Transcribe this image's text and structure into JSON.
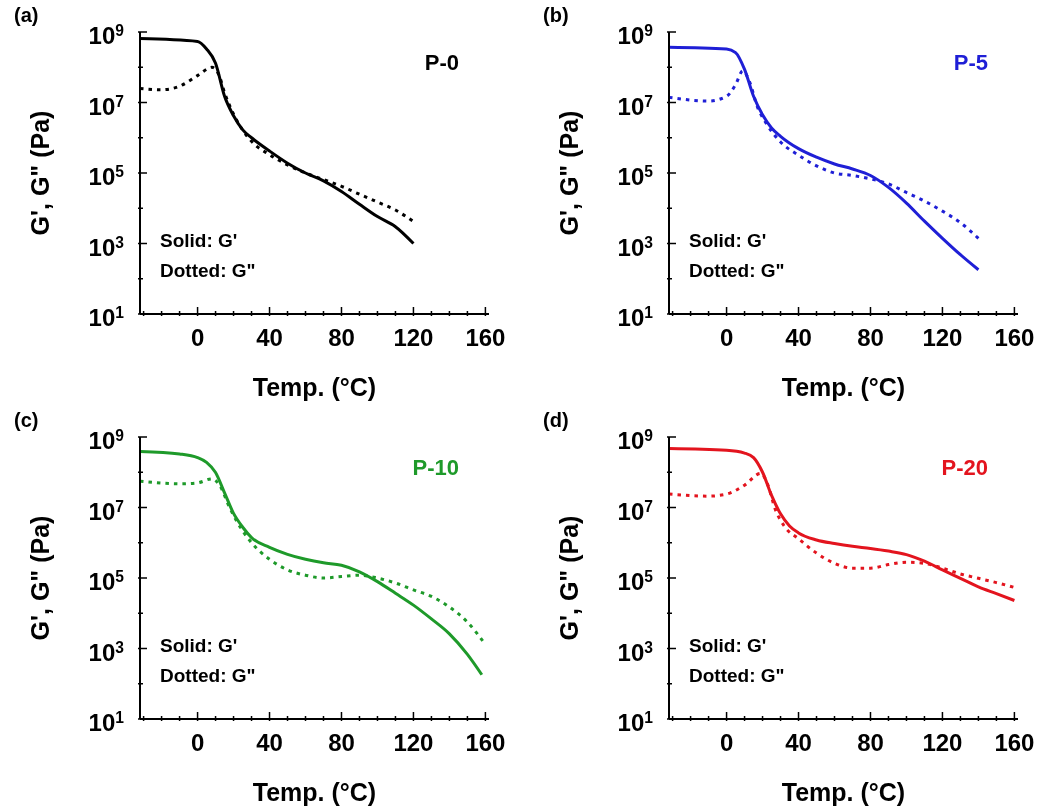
{
  "chart_data": [
    {
      "type": "line",
      "title": "(a)",
      "xlabel": "Temp. (°C)",
      "ylabel": "G', G\" (Pa)",
      "annotations": [
        "P-0",
        "Solid: G'",
        "Dotted: G\""
      ],
      "log": true,
      "xlim": [
        -32,
        162
      ],
      "ylim": [
        10,
        1000000000
      ],
      "xticks": [
        {
          "value": -30,
          "label": null
        },
        {
          "value": -20,
          "label": null
        },
        {
          "value": -10,
          "label": null
        },
        0,
        {
          "value": 10,
          "label": null
        },
        {
          "value": 20,
          "label": null
        },
        {
          "value": 30,
          "label": null
        },
        40,
        {
          "value": 50,
          "label": null
        },
        {
          "value": 60,
          "label": null
        },
        {
          "value": 70,
          "label": null
        },
        80,
        {
          "value": 90,
          "label": null
        },
        {
          "value": 100,
          "label": null
        },
        {
          "value": 110,
          "label": null
        },
        120,
        {
          "value": 130,
          "label": null
        },
        {
          "value": 140,
          "label": null
        },
        {
          "value": 150,
          "label": null
        },
        160
      ],
      "yticks": [
        {
          "value": 10,
          "label": "10$^{1}$"
        },
        {
          "value": 100,
          "label": null
        },
        {
          "value": 1000,
          "label": "10$^{3}$"
        },
        {
          "value": 10000,
          "label": null
        },
        {
          "value": 100000,
          "label": "10$^{5}$"
        },
        {
          "value": 1000000,
          "label": null
        },
        {
          "value": 10000000,
          "label": "10$^{7}$"
        },
        {
          "value": 100000000,
          "label": null
        },
        {
          "value": 1000000000,
          "label": "10$^{9}$"
        }
      ],
      "series": [
        {
          "color": "#000000",
          "line_style": "solid",
          "x": [
            -32,
            0,
            5,
            10,
            15,
            20,
            25,
            30,
            40,
            50,
            60,
            70,
            80,
            90,
            100,
            110,
            120
          ],
          "values": [
            650000000.0,
            540000000.0,
            330000000.0,
            130000000.0,
            15000000.0,
            4200000.0,
            1700000.0,
            1000000.0,
            420000.0,
            190000.0,
            100000.0,
            60000.0,
            30000.0,
            13000.0,
            5800.0,
            3000.0,
            1000.0
          ]
        },
        {
          "color": "#000000",
          "line_style": "dotted",
          "x": [
            -32,
            -20,
            -10,
            0,
            8,
            12,
            15,
            20,
            30,
            40,
            50,
            60,
            70,
            80,
            90,
            100,
            110,
            120
          ],
          "values": [
            25000000.0,
            23000000.0,
            29000000.0,
            58000000.0,
            100000000.0,
            58000000.0,
            19000000.0,
            4700000.0,
            790000.0,
            330000.0,
            170000.0,
            100000.0,
            65000.0,
            42000.0,
            25000.0,
            15000.0,
            8900.0,
            4200.0
          ]
        }
      ]
    },
    {
      "type": "line",
      "title": "(b)",
      "xlabel": "Temp. (°C)",
      "ylabel": "G', G\" (Pa)",
      "annotations": [
        "P-5",
        "Solid: G'",
        "Dotted: G\""
      ],
      "log": true,
      "xlim": [
        -32,
        162
      ],
      "ylim": [
        10,
        1000000000
      ],
      "xticks": [
        {
          "value": -30,
          "label": null
        },
        {
          "value": -20,
          "label": null
        },
        {
          "value": -10,
          "label": null
        },
        0,
        {
          "value": 10,
          "label": null
        },
        {
          "value": 20,
          "label": null
        },
        {
          "value": 30,
          "label": null
        },
        40,
        {
          "value": 50,
          "label": null
        },
        {
          "value": 60,
          "label": null
        },
        {
          "value": 70,
          "label": null
        },
        80,
        {
          "value": 90,
          "label": null
        },
        {
          "value": 100,
          "label": null
        },
        {
          "value": 110,
          "label": null
        },
        120,
        {
          "value": 130,
          "label": null
        },
        {
          "value": 140,
          "label": null
        },
        {
          "value": 150,
          "label": null
        },
        160
      ],
      "yticks": [
        {
          "value": 10,
          "label": "10$^{1}$"
        },
        {
          "value": 100,
          "label": null
        },
        {
          "value": 1000,
          "label": "10$^{3}$"
        },
        {
          "value": 10000,
          "label": null
        },
        {
          "value": 100000,
          "label": "10$^{5}$"
        },
        {
          "value": 1000000,
          "label": null
        },
        {
          "value": 10000000,
          "label": "10$^{7}$"
        },
        {
          "value": 100000000,
          "label": null
        },
        {
          "value": 1000000000,
          "label": "10$^{9}$"
        }
      ],
      "series": [
        {
          "color": "#1f1fd6",
          "line_style": "solid",
          "x": [
            -32,
            0,
            5,
            10,
            15,
            20,
            25,
            30,
            40,
            50,
            60,
            70,
            80,
            90,
            100,
            110,
            120,
            130,
            140
          ],
          "values": [
            370000000.0,
            330000000.0,
            260000000.0,
            87000000.0,
            15000000.0,
            4500000.0,
            1900000.0,
            1100000.0,
            490000.0,
            280000.0,
            180000.0,
            130000.0,
            85000.0,
            39000.0,
            14000.0,
            4300.0,
            1400.0,
            480,
            180
          ]
        },
        {
          "color": "#1f1fd6",
          "line_style": "dotted",
          "x": [
            -32,
            -10,
            0,
            5,
            9,
            13,
            17,
            22,
            30,
            40,
            50,
            60,
            70,
            80,
            90,
            100,
            110,
            120,
            130,
            140
          ],
          "values": [
            14000000.0,
            11000000.0,
            15000000.0,
            32000000.0,
            79000000.0,
            36000000.0,
            7800000.0,
            2600000.0,
            760000.0,
            320000.0,
            160000.0,
            100000.0,
            85000.0,
            68000.0,
            49000.0,
            28000.0,
            16000.0,
            8300.0,
            3900.0,
            1400.0
          ]
        }
      ]
    },
    {
      "type": "line",
      "title": "(c)",
      "xlabel": "Temp. (°C)",
      "ylabel": "G', G\" (Pa)",
      "annotations": [
        "P-10",
        "Solid: G'",
        "Dotted: G\""
      ],
      "log": true,
      "xlim": [
        -32,
        162
      ],
      "ylim": [
        10,
        1000000000
      ],
      "xticks": [
        {
          "value": -30,
          "label": null
        },
        {
          "value": -20,
          "label": null
        },
        {
          "value": -10,
          "label": null
        },
        0,
        {
          "value": 10,
          "label": null
        },
        {
          "value": 20,
          "label": null
        },
        {
          "value": 30,
          "label": null
        },
        40,
        {
          "value": 50,
          "label": null
        },
        {
          "value": 60,
          "label": null
        },
        {
          "value": 70,
          "label": null
        },
        80,
        {
          "value": 90,
          "label": null
        },
        {
          "value": 100,
          "label": null
        },
        {
          "value": 110,
          "label": null
        },
        120,
        {
          "value": 130,
          "label": null
        },
        {
          "value": 140,
          "label": null
        },
        {
          "value": 150,
          "label": null
        },
        160
      ],
      "yticks": [
        {
          "value": 10,
          "label": "10$^{1}$"
        },
        {
          "value": 100,
          "label": null
        },
        {
          "value": 1000,
          "label": "10$^{3}$"
        },
        {
          "value": 10000,
          "label": null
        },
        {
          "value": 100000,
          "label": "10$^{5}$"
        },
        {
          "value": 1000000,
          "label": null
        },
        {
          "value": 10000000,
          "label": "10$^{7}$"
        },
        {
          "value": 100000000,
          "label": null
        },
        {
          "value": 1000000000,
          "label": "10$^{9}$"
        }
      ],
      "series": [
        {
          "color": "#1e9a2a",
          "line_style": "solid",
          "x": [
            -32,
            -10,
            0,
            5,
            10,
            15,
            20,
            25,
            30,
            40,
            50,
            60,
            70,
            80,
            90,
            100,
            110,
            120,
            130,
            140,
            150,
            158
          ],
          "values": [
            390000000.0,
            330000000.0,
            260000000.0,
            190000000.0,
            98000000.0,
            26000000.0,
            6800000.0,
            2800000.0,
            1400000.0,
            740000.0,
            470000.0,
            340000.0,
            270000.0,
            230000.0,
            150000.0,
            79000.0,
            37000.0,
            17000.0,
            6900.0,
            2600.0,
            680,
            180
          ]
        },
        {
          "color": "#1e9a2a",
          "line_style": "dotted",
          "x": [
            -32,
            -10,
            0,
            8,
            12,
            18,
            25,
            30,
            40,
            50,
            60,
            70,
            80,
            90,
            100,
            110,
            120,
            130,
            140,
            150,
            160
          ],
          "values": [
            56000000.0,
            47000000.0,
            50000000.0,
            65000000.0,
            45000000.0,
            9500000.0,
            2200000.0,
            1000000.0,
            340000.0,
            170000.0,
            120000.0,
            100000.0,
            110000.0,
            120000.0,
            100000.0,
            72000.0,
            46000.0,
            30000.0,
            15000.0,
            5600.0,
            1300.0
          ]
        }
      ]
    },
    {
      "type": "line",
      "title": "(d)",
      "xlabel": "Temp. (°C)",
      "ylabel": "G', G\" (Pa)",
      "annotations": [
        "P-20",
        "Solid: G'",
        "Dotted: G\""
      ],
      "log": true,
      "xlim": [
        -32,
        162
      ],
      "ylim": [
        10,
        1000000000
      ],
      "xticks": [
        {
          "value": -30,
          "label": null
        },
        {
          "value": -20,
          "label": null
        },
        {
          "value": -10,
          "label": null
        },
        0,
        {
          "value": 10,
          "label": null
        },
        {
          "value": 20,
          "label": null
        },
        {
          "value": 30,
          "label": null
        },
        40,
        {
          "value": 50,
          "label": null
        },
        {
          "value": 60,
          "label": null
        },
        {
          "value": 70,
          "label": null
        },
        80,
        {
          "value": 90,
          "label": null
        },
        {
          "value": 100,
          "label": null
        },
        {
          "value": 110,
          "label": null
        },
        120,
        {
          "value": 130,
          "label": null
        },
        {
          "value": 140,
          "label": null
        },
        {
          "value": 150,
          "label": null
        },
        160
      ],
      "yticks": [
        {
          "value": 10,
          "label": "10$^{1}$"
        },
        {
          "value": 100,
          "label": null
        },
        {
          "value": 1000,
          "label": "10$^{3}$"
        },
        {
          "value": 10000,
          "label": null
        },
        {
          "value": 100000,
          "label": "10$^{5}$"
        },
        {
          "value": 1000000,
          "label": null
        },
        {
          "value": 10000000,
          "label": "10$^{7}$"
        },
        {
          "value": 100000000,
          "label": null
        },
        {
          "value": 1000000000,
          "label": "10$^{9}$"
        }
      ],
      "series": [
        {
          "color": "#e3141e",
          "line_style": "solid",
          "x": [
            -32,
            0,
            10,
            15,
            20,
            25,
            30,
            35,
            40,
            50,
            60,
            70,
            80,
            90,
            100,
            110,
            120,
            130,
            140,
            150,
            160
          ],
          "values": [
            470000000.0,
            420000000.0,
            350000000.0,
            260000000.0,
            100000000.0,
            22000000.0,
            6600000.0,
            3000000.0,
            1900000.0,
            1200000.0,
            950000.0,
            790000.0,
            690000.0,
            580000.0,
            460000.0,
            300000.0,
            170000.0,
            98000.0,
            56000.0,
            36000.0,
            23000.0
          ]
        },
        {
          "color": "#e3141e",
          "line_style": "dotted",
          "x": [
            -32,
            -10,
            0,
            10,
            19,
            23,
            27,
            32,
            40,
            50,
            60,
            70,
            80,
            90,
            100,
            110,
            120,
            130,
            140,
            150,
            160
          ],
          "values": [
            24000000.0,
            21000000.0,
            24000000.0,
            43000000.0,
            93000000.0,
            43000000.0,
            9100000.0,
            3000000.0,
            1300000.0,
            510000.0,
            260000.0,
            190000.0,
            190000.0,
            240000.0,
            280000.0,
            260000.0,
            190000.0,
            130000.0,
            98000.0,
            74000.0,
            54000.0
          ]
        }
      ]
    }
  ]
}
